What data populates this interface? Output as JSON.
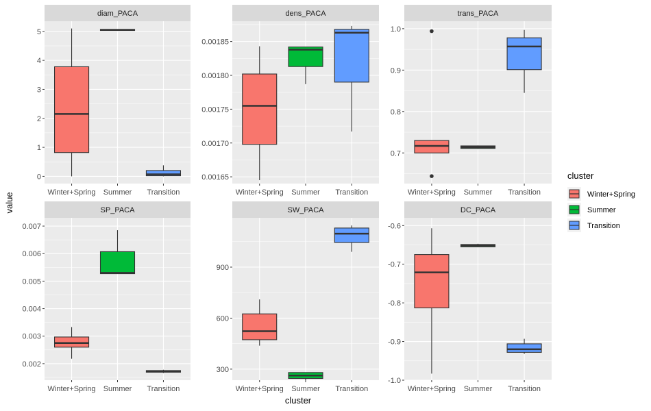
{
  "chart_data": {
    "type": "boxplot",
    "xlabel": "cluster",
    "ylabel": "value",
    "categories": [
      "Winter+Spring",
      "Summer",
      "Transition"
    ],
    "legend": {
      "title": "cluster",
      "position": "right",
      "entries": [
        "Winter+Spring",
        "Summer",
        "Transition"
      ]
    },
    "colors": {
      "Winter+Spring": "#F8766D",
      "Summer": "#00BA38",
      "Transition": "#619CFF",
      "panel_bg": "#EBEBEB",
      "strip_bg": "#D9D9D9",
      "grid": "#FFFFFF",
      "median": "#333333"
    },
    "panels": [
      {
        "title": "diam_PACA",
        "ylim": [
          -0.25,
          5.35
        ],
        "yticks": [
          0,
          1,
          2,
          3,
          4,
          5
        ],
        "ytick_labels": [
          "0",
          "1",
          "2",
          "3",
          "4",
          "5"
        ],
        "boxes": [
          {
            "category": "Winter+Spring",
            "whisker_low": 0.0,
            "q1": 0.82,
            "median": 2.15,
            "q3": 3.78,
            "whisker_high": 5.1,
            "outliers": []
          },
          {
            "category": "Summer",
            "whisker_low": 5.03,
            "q1": 5.03,
            "median": 5.05,
            "q3": 5.07,
            "whisker_high": 5.07,
            "outliers": []
          },
          {
            "category": "Transition",
            "whisker_low": 0.0,
            "q1": 0.02,
            "median": 0.07,
            "q3": 0.2,
            "whisker_high": 0.38,
            "outliers": []
          }
        ]
      },
      {
        "title": "dens_PACA",
        "ylim": [
          0.00164,
          0.00188
        ],
        "yticks": [
          0.00165,
          0.0017,
          0.00175,
          0.0018,
          0.00185
        ],
        "ytick_labels": [
          "0.00165",
          "0.00170",
          "0.00175",
          "0.00180",
          "0.00185"
        ],
        "boxes": [
          {
            "category": "Winter+Spring",
            "whisker_low": 0.001645,
            "q1": 0.001698,
            "median": 0.001755,
            "q3": 0.001802,
            "whisker_high": 0.001843,
            "outliers": []
          },
          {
            "category": "Summer",
            "whisker_low": 0.001787,
            "q1": 0.001813,
            "median": 0.001838,
            "q3": 0.001842,
            "whisker_high": 0.001842,
            "outliers": []
          },
          {
            "category": "Transition",
            "whisker_low": 0.001717,
            "q1": 0.00179,
            "median": 0.001863,
            "q3": 0.001868,
            "whisker_high": 0.001873,
            "outliers": []
          }
        ]
      },
      {
        "title": "trans_PACA",
        "ylim": [
          0.626,
          1.018
        ],
        "yticks": [
          0.7,
          0.8,
          0.9,
          1.0
        ],
        "ytick_labels": [
          "0.7",
          "0.8",
          "0.9",
          "1.0"
        ],
        "boxes": [
          {
            "category": "Winter+Spring",
            "whisker_low": 0.7,
            "q1": 0.7,
            "median": 0.717,
            "q3": 0.73,
            "whisker_high": 0.73,
            "outliers": [
              0.644,
              0.994
            ]
          },
          {
            "category": "Summer",
            "whisker_low": 0.71,
            "q1": 0.711,
            "median": 0.714,
            "q3": 0.717,
            "whisker_high": 0.718,
            "outliers": []
          },
          {
            "category": "Transition",
            "whisker_low": 0.845,
            "q1": 0.901,
            "median": 0.957,
            "q3": 0.978,
            "whisker_high": 0.997,
            "outliers": []
          }
        ]
      },
      {
        "title": "SP_PACA",
        "ylim": [
          0.0014,
          0.0073
        ],
        "yticks": [
          0.002,
          0.003,
          0.004,
          0.005,
          0.006,
          0.007
        ],
        "ytick_labels": [
          "0.002",
          "0.003",
          "0.004",
          "0.005",
          "0.006",
          "0.007"
        ],
        "boxes": [
          {
            "category": "Winter+Spring",
            "whisker_low": 0.00218,
            "q1": 0.0026,
            "median": 0.00275,
            "q3": 0.00297,
            "whisker_high": 0.00333,
            "outliers": []
          },
          {
            "category": "Summer",
            "whisker_low": 0.00527,
            "q1": 0.00527,
            "median": 0.0053,
            "q3": 0.00607,
            "whisker_high": 0.00685,
            "outliers": []
          },
          {
            "category": "Transition",
            "whisker_low": 0.00166,
            "q1": 0.00169,
            "median": 0.00172,
            "q3": 0.00175,
            "whisker_high": 0.00178,
            "outliers": []
          }
        ]
      },
      {
        "title": "SW_PACA",
        "ylim": [
          235,
          1190
        ],
        "yticks": [
          300,
          600,
          900
        ],
        "ytick_labels": [
          "300",
          "600",
          "900"
        ],
        "boxes": [
          {
            "category": "Winter+Spring",
            "whisker_low": 438,
            "q1": 473,
            "median": 523,
            "q3": 625,
            "whisker_high": 710,
            "outliers": []
          },
          {
            "category": "Summer",
            "whisker_low": 235,
            "q1": 245,
            "median": 262,
            "q3": 280,
            "whisker_high": 280,
            "outliers": []
          },
          {
            "category": "Transition",
            "whisker_low": 990,
            "q1": 1045,
            "median": 1097,
            "q3": 1130,
            "whisker_high": 1145,
            "outliers": []
          }
        ]
      },
      {
        "title": "DC_PACA",
        "ylim": [
          -1.0,
          -0.58
        ],
        "yticks": [
          -1.0,
          -0.9,
          -0.8,
          -0.7,
          -0.6
        ],
        "ytick_labels": [
          "-1.0",
          "-0.9",
          "-0.8",
          "-0.7",
          "-0.6"
        ],
        "boxes": [
          {
            "category": "Winter+Spring",
            "whisker_low": -0.983,
            "q1": -0.813,
            "median": -0.721,
            "q3": -0.675,
            "whisker_high": -0.607,
            "outliers": []
          },
          {
            "category": "Summer",
            "whisker_low": -0.656,
            "q1": -0.655,
            "median": -0.652,
            "q3": -0.649,
            "whisker_high": -0.647,
            "outliers": []
          },
          {
            "category": "Transition",
            "whisker_low": -0.932,
            "q1": -0.928,
            "median": -0.92,
            "q3": -0.906,
            "whisker_high": -0.893,
            "outliers": []
          }
        ]
      }
    ]
  }
}
